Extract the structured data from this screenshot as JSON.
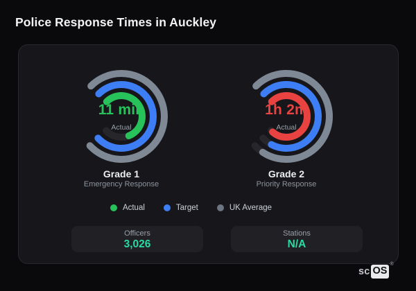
{
  "page_title": "Police Response Times in Auckley",
  "colors": {
    "background": "#0a0a0d",
    "card_background": "#17171b",
    "card_border": "#28282e",
    "ring_track": "#26262b",
    "actual_green": "#27c25a",
    "actual_red": "#e84341",
    "target_blue": "#3e7ef5",
    "uk_average_gray": "#7e8995",
    "stat_teal": "#2bd9a2"
  },
  "gauges": [
    {
      "value_text": "11 min",
      "value_color": "#27c25a",
      "center_label": "Actual",
      "title": "Grade 1",
      "subtitle": "Emergency Response",
      "rings": [
        {
          "name": "UK Average",
          "color": "#7e8995",
          "fraction": 1.0
        },
        {
          "name": "Target",
          "color": "#3e7ef5",
          "fraction": 1.0
        },
        {
          "name": "Actual",
          "color": "#27c25a",
          "fraction": 0.75
        }
      ]
    },
    {
      "value_text": "1h 2m",
      "value_color": "#e84341",
      "center_label": "Actual",
      "title": "Grade 2",
      "subtitle": "Priority Response",
      "rings": [
        {
          "name": "UK Average",
          "color": "#7e8995",
          "fraction": 0.95
        },
        {
          "name": "Target",
          "color": "#3e7ef5",
          "fraction": 0.93
        },
        {
          "name": "Actual",
          "color": "#e84341",
          "fraction": 0.98
        }
      ]
    }
  ],
  "legend": [
    {
      "label": "Actual",
      "color": "#27c25a"
    },
    {
      "label": "Target",
      "color": "#3e7ef5"
    },
    {
      "label": "UK Average",
      "color": "#6c7683"
    }
  ],
  "stats": [
    {
      "label": "Officers",
      "value": "3,026"
    },
    {
      "label": "Stations",
      "value": "N/A"
    }
  ],
  "footer_logo": {
    "prefix": "sc",
    "suffix": "OS",
    "registered": "®"
  },
  "chart_data": {
    "type": "gauge",
    "title": "Police Response Times in Auckley",
    "legend": [
      "Actual",
      "Target",
      "UK Average"
    ],
    "legend_position": "bottom",
    "gauge_geometry": {
      "start_angle_deg": -45,
      "sweep_deg": 272,
      "ring_radii": [
        62,
        46,
        30
      ],
      "stroke_px": 10
    },
    "gauges": [
      {
        "name": "Grade 1",
        "subtitle": "Emergency Response",
        "actual_value_label": "11 min",
        "ring_fill_fractions": {
          "actual": 0.75,
          "target": 1.0,
          "uk_average": 1.0
        },
        "actual_color": "green"
      },
      {
        "name": "Grade 2",
        "subtitle": "Priority Response",
        "actual_value_label": "1h 2m",
        "ring_fill_fractions": {
          "actual": 0.98,
          "target": 0.93,
          "uk_average": 0.95
        },
        "actual_color": "red"
      }
    ],
    "stats": [
      {
        "label": "Officers",
        "value": "3,026"
      },
      {
        "label": "Stations",
        "value": "N/A"
      }
    ]
  }
}
